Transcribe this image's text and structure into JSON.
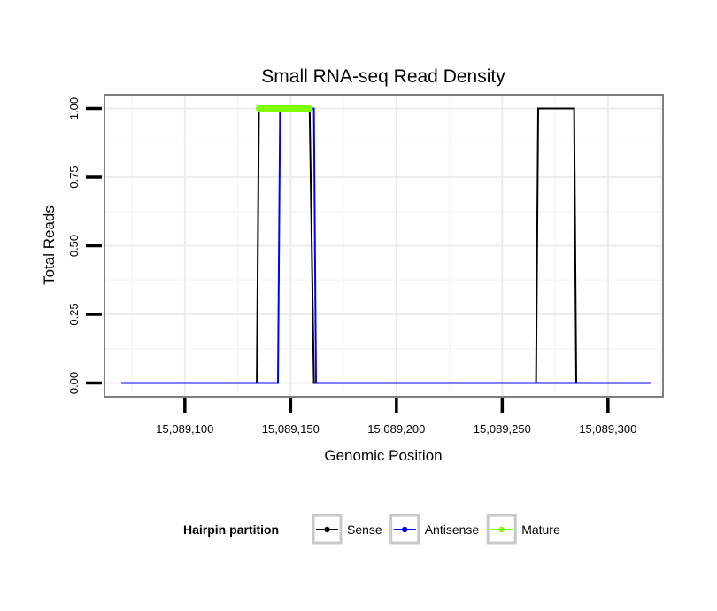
{
  "chart_data": {
    "type": "line",
    "title": "Small RNA-seq Read Density",
    "xlabel": "Genomic Position",
    "ylabel": "Total Reads",
    "xlim": [
      15089062,
      15089326
    ],
    "ylim": [
      -0.05,
      1.05
    ],
    "x_ticks": [
      15089100,
      15089150,
      15089200,
      15089250,
      15089300
    ],
    "x_tick_labels": [
      "15,089,100",
      "15,089,150",
      "15,089,200",
      "15,089,250",
      "15,089,300"
    ],
    "y_ticks": [
      0,
      0.25,
      0.5,
      0.75,
      1
    ],
    "y_tick_labels": [
      "0.00",
      "0.25",
      "0.50",
      "0.75",
      "1.00"
    ],
    "grid": true,
    "legend": {
      "title": "Hairpin partition",
      "position": "bottom",
      "entries": [
        {
          "name": "Sense",
          "color": "#000000"
        },
        {
          "name": "Antisense",
          "color": "#0000ff"
        },
        {
          "name": "Mature",
          "color": "#7fff00"
        }
      ]
    },
    "series": [
      {
        "name": "Sense",
        "color": "#000000",
        "x": [
          15089070,
          15089134,
          15089135,
          15089159,
          15089161,
          15089266,
          15089267,
          15089284,
          15089285,
          15089320
        ],
        "y": [
          0,
          0,
          1,
          1,
          0,
          0,
          1,
          1,
          0,
          0
        ]
      },
      {
        "name": "Antisense",
        "color": "#0000ff",
        "x": [
          15089070,
          15089144,
          15089145,
          15089161,
          15089162,
          15089320
        ],
        "y": [
          0,
          0,
          1,
          1,
          0,
          0
        ]
      },
      {
        "name": "Mature",
        "color": "#7fff00",
        "x": [
          15089135,
          15089159
        ],
        "y": [
          1,
          1
        ]
      }
    ]
  }
}
